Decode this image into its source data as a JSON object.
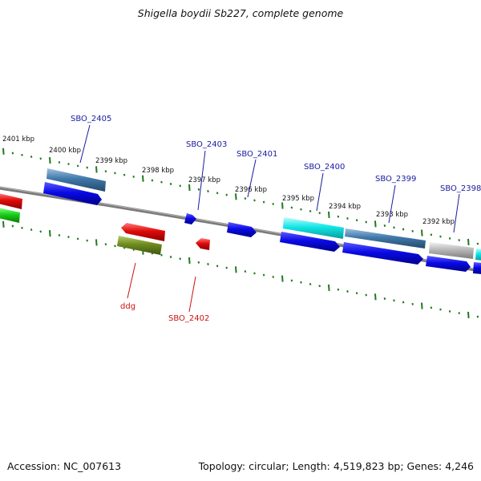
{
  "title": "Shigella boydii Sb227, complete genome",
  "footer": {
    "accession": "Accession: NC_007613",
    "summary": "Topology: circular; Length: 4,519,823 bp; Genes: 4,246"
  },
  "colors": {
    "backbone": "#7a7a7a",
    "tick": "#1f7a1f",
    "cds_blue": "#0a0ae6",
    "rna_cyan": "#11e6e6",
    "steel_blue": "#3f78aa",
    "gray": "#b8b8b8",
    "red": "#e00a0a",
    "olive": "#6e8c1e",
    "green": "#18d018",
    "label_forward": "#1a1aa0",
    "label_reverse": "#cc1111"
  },
  "scale_labels": [
    "2401 kbp",
    "2400 kbp",
    "2399 kbp",
    "2398 kbp",
    "2397 kbp",
    "2396 kbp",
    "2395 kbp",
    "2394 kbp",
    "2393 kbp",
    "2392 kbp"
  ],
  "gene_labels": [
    {
      "text": "SBO_2405",
      "strand": "forward"
    },
    {
      "text": "SBO_2403",
      "strand": "forward"
    },
    {
      "text": "SBO_2401",
      "strand": "forward"
    },
    {
      "text": "SBO_2400",
      "strand": "forward"
    },
    {
      "text": "SBO_2399",
      "strand": "forward"
    },
    {
      "text": "SBO_2398",
      "strand": "forward"
    },
    {
      "text": "ddg",
      "strand": "reverse"
    },
    {
      "text": "SBO_2402",
      "strand": "reverse"
    }
  ]
}
